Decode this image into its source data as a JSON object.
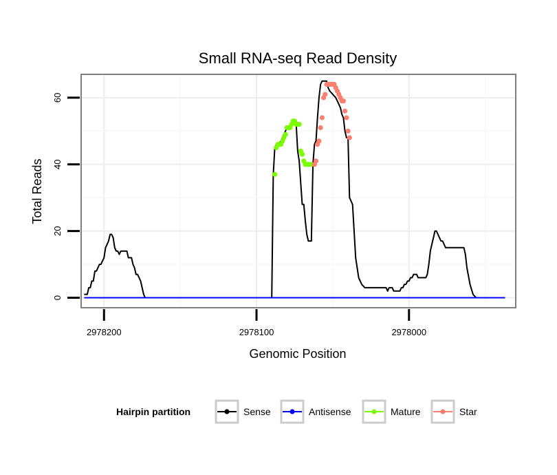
{
  "chart_data": {
    "type": "line",
    "title": "Small RNA-seq Read Density",
    "xlabel": "Genomic Position",
    "ylabel": "Total Reads",
    "x_reversed": true,
    "xlim": [
      2978215,
      2977930
    ],
    "ylim": [
      -3,
      67
    ],
    "x_ticks": [
      2978200,
      2978100,
      2978000
    ],
    "x_tick_labels": [
      "2978200",
      "2978100",
      "2978000"
    ],
    "y_ticks": [
      0,
      20,
      40,
      60
    ],
    "y_tick_labels": [
      "0",
      "20",
      "40",
      "60"
    ],
    "grid": true,
    "legend": {
      "title": "Hairpin partition",
      "position": "bottom",
      "entries": [
        {
          "name": "Sense",
          "color": "#000000"
        },
        {
          "name": "Antisense",
          "color": "#0000ff"
        },
        {
          "name": "Mature",
          "color": "#7cfc00"
        },
        {
          "name": "Star",
          "color": "#fa8072"
        }
      ]
    },
    "series": [
      {
        "name": "Sense",
        "type": "line",
        "color": "#000000",
        "x": [
          2978213,
          2978211,
          2978210,
          2978209,
          2978208,
          2978207,
          2978206,
          2978205,
          2978204,
          2978203,
          2978202,
          2978201,
          2978200,
          2978199,
          2978198,
          2978197,
          2978196,
          2978195,
          2978194,
          2978193,
          2978192,
          2978191,
          2978190,
          2978189,
          2978188,
          2978187,
          2978186,
          2978185,
          2978184,
          2978183,
          2978182,
          2978181,
          2978180,
          2978179,
          2978178,
          2978177,
          2978176,
          2978175,
          2978174,
          2978173,
          2978172,
          2978171,
          2978170,
          2978169,
          2978168,
          2978167,
          2978166,
          2978165,
          2978164,
          2978163,
          2978162,
          2978161,
          2978160,
          2978159,
          2978158,
          2978157,
          2978156,
          2978155,
          2978154,
          2978153,
          2978152,
          2978151,
          2978150,
          2978149,
          2978148,
          2978146,
          2978144,
          2978142,
          2978120,
          2978110,
          2978090,
          2978089,
          2978088,
          2978087,
          2978086,
          2978084,
          2978082,
          2978080,
          2978078,
          2978076,
          2978074,
          2978073,
          2978072,
          2978070,
          2978069,
          2978068,
          2978067,
          2978066,
          2978065,
          2978064,
          2978063,
          2978062,
          2978061,
          2978060,
          2978059,
          2978058,
          2978057,
          2978056,
          2978055,
          2978054,
          2978053,
          2978052,
          2978050,
          2978048,
          2978047,
          2978046,
          2978045,
          2978044,
          2978043,
          2978042,
          2978041,
          2978040,
          2978039,
          2978037,
          2978035,
          2978033,
          2978031,
          2978029,
          2978027,
          2978025,
          2978023,
          2978021,
          2978019,
          2978017,
          2978016,
          2978015,
          2978014,
          2978013,
          2978012,
          2978011,
          2978010,
          2978009,
          2978008,
          2978007,
          2978006,
          2978005,
          2978004,
          2978003,
          2978002,
          2978001,
          2978000,
          2977999,
          2977998,
          2977997,
          2977996,
          2977995,
          2977994,
          2977993,
          2977992,
          2977991,
          2977990,
          2977989,
          2977988,
          2977987,
          2977986,
          2977985,
          2977984,
          2977983,
          2977982,
          2977981,
          2977980,
          2977979,
          2977978,
          2977977,
          2977976,
          2977975,
          2977974,
          2977973,
          2977972,
          2977971,
          2977970,
          2977969,
          2977968,
          2977967,
          2977966,
          2977965,
          2977964,
          2977963,
          2977962,
          2977960,
          2977958,
          2977956,
          2977954,
          2977952,
          2977950,
          2977948,
          2977946,
          2977944,
          2977942,
          2977940,
          2977938,
          2977937
        ],
        "y": [
          1,
          1,
          3,
          3,
          5,
          5,
          8,
          8,
          9,
          10,
          10,
          11,
          12,
          15,
          16,
          17,
          19,
          19,
          18,
          15,
          14,
          14,
          13,
          14,
          14,
          14,
          14,
          14,
          12,
          12,
          12,
          10,
          9,
          7,
          7,
          6,
          5,
          3,
          1,
          0,
          0,
          0,
          0,
          0,
          0,
          0,
          0,
          0,
          0,
          0,
          0,
          0,
          0,
          0,
          0,
          0,
          0,
          0,
          0,
          0,
          0,
          0,
          0,
          0,
          0,
          0,
          0,
          0,
          0,
          0,
          0,
          37,
          45,
          46,
          46,
          47,
          49,
          51,
          51,
          53,
          52,
          44,
          41,
          28,
          28,
          23,
          19,
          17,
          17,
          17,
          40,
          46,
          47,
          54,
          60,
          64,
          65,
          65,
          65,
          65,
          63,
          62,
          61,
          60,
          59,
          58,
          57,
          55,
          54,
          50,
          48,
          48,
          30,
          28,
          12,
          6,
          4,
          3,
          3,
          3,
          3,
          3,
          3,
          3,
          3,
          3,
          2,
          3,
          3,
          3,
          2,
          2,
          2,
          2,
          2,
          3,
          3,
          4,
          4,
          5,
          5,
          6,
          6,
          7,
          7,
          7,
          6,
          6,
          6,
          6,
          6,
          6,
          7,
          10,
          14,
          16,
          18,
          20,
          20,
          19,
          18,
          17,
          17,
          16,
          15,
          15,
          15,
          15,
          15,
          15,
          15,
          15,
          15,
          15,
          15,
          15,
          15,
          13,
          9,
          4,
          1,
          0,
          0,
          0,
          0,
          0,
          0,
          0,
          0,
          0,
          0,
          0
        ]
      },
      {
        "name": "Antisense",
        "type": "line",
        "color": "#0000ff",
        "x": [
          2978213,
          2977937
        ],
        "y": [
          0,
          0
        ]
      },
      {
        "name": "Mature",
        "type": "scatter",
        "color": "#7cfc00",
        "x": [
          2978088,
          2978087,
          2978086,
          2978085,
          2978084,
          2978083,
          2978082,
          2978081,
          2978080,
          2978079,
          2978078,
          2978077,
          2978076,
          2978075,
          2978074,
          2978073,
          2978072,
          2978071,
          2978070,
          2978069,
          2978068,
          2978067,
          2978066,
          2978065,
          2978064
        ],
        "y": [
          37,
          45,
          46,
          46,
          46,
          47,
          48,
          49,
          51,
          51,
          51,
          52,
          53,
          53,
          52,
          52,
          52,
          44,
          43,
          41,
          40,
          40,
          40,
          40,
          40
        ]
      },
      {
        "name": "Star",
        "type": "scatter",
        "color": "#fa8072",
        "x": [
          2978062,
          2978061,
          2978060,
          2978059,
          2978058,
          2978057,
          2978056,
          2978055,
          2978054,
          2978053,
          2978052,
          2978051,
          2978050,
          2978049,
          2978048,
          2978047,
          2978046,
          2978045,
          2978044,
          2978043,
          2978042,
          2978041,
          2978040,
          2978039
        ],
        "y": [
          40,
          41,
          46,
          47,
          51,
          54,
          60,
          61,
          64,
          64,
          64,
          64,
          64,
          64,
          63,
          62,
          61,
          60,
          59,
          59,
          56,
          54,
          50,
          48
        ]
      }
    ]
  }
}
